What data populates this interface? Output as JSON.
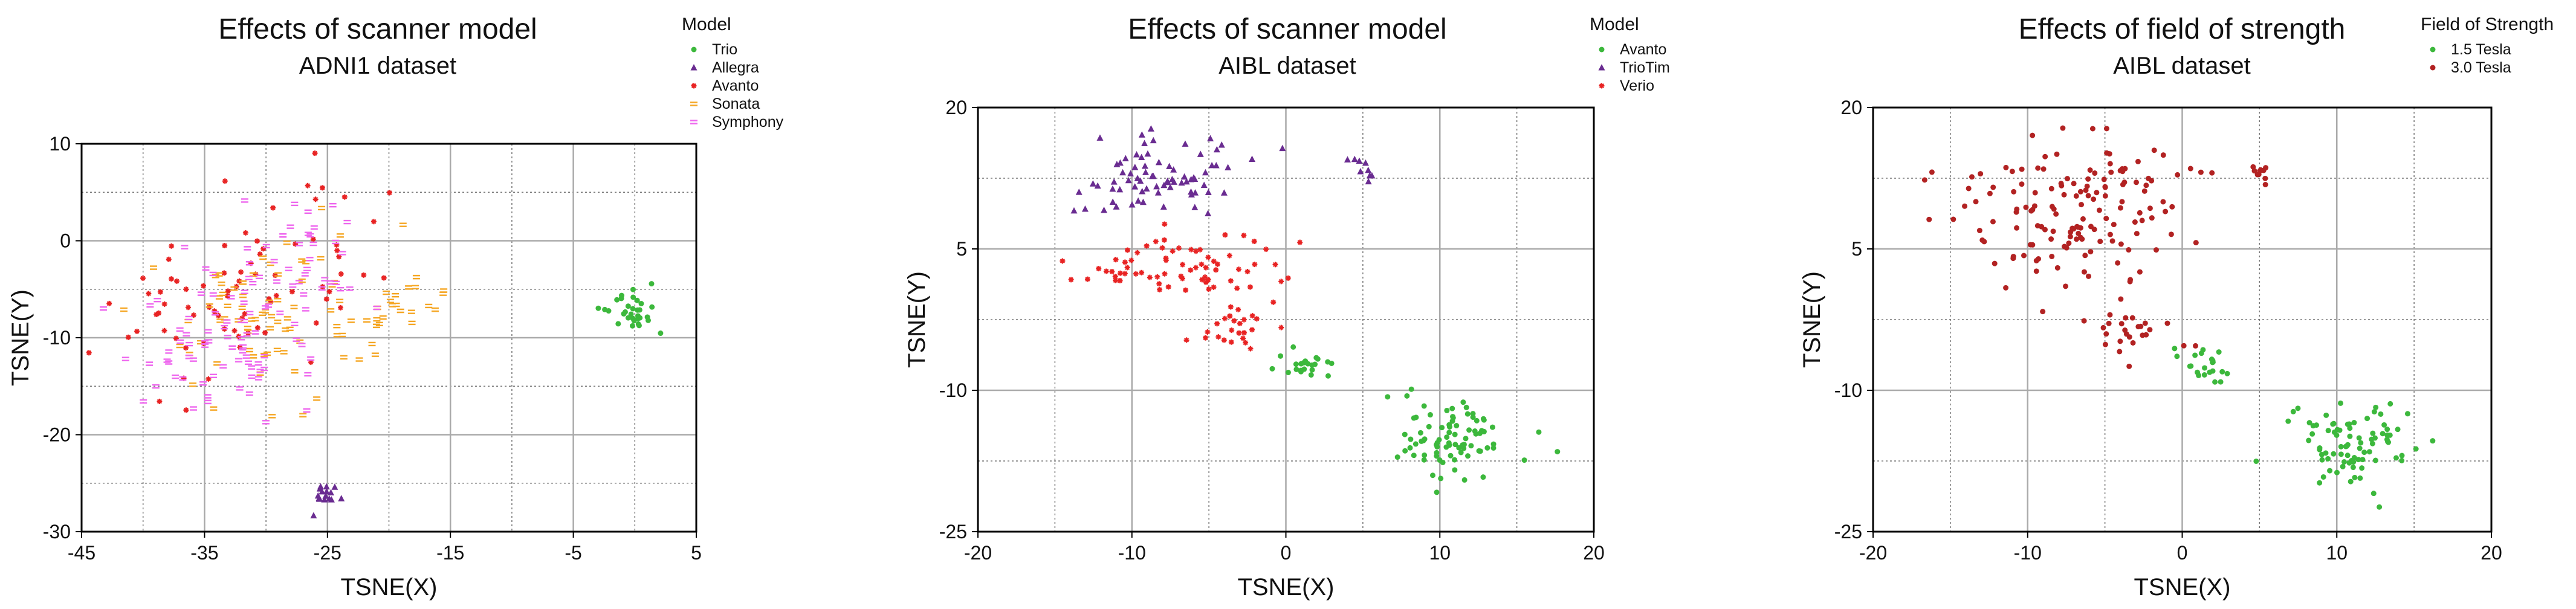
{
  "figure": {
    "description_count": 3
  },
  "chart_data": [
    {
      "type": "scatter",
      "title": "Effects of scanner model",
      "subtitle": "ADNI1 dataset",
      "xlabel": "TSNE(X)",
      "ylabel": "TSNE(Y)",
      "xlim": [
        -45,
        5
      ],
      "ylim": [
        -30,
        10
      ],
      "xticks": [
        -45,
        -35,
        -25,
        -15,
        -5,
        5
      ],
      "yticks": [
        -30,
        -20,
        -10,
        0,
        10
      ],
      "xgrid_major": [
        -35,
        -25,
        -15,
        -5
      ],
      "xgrid_minor": [
        -40,
        -30,
        -20,
        -10,
        0
      ],
      "ygrid_major": [
        -20,
        -10,
        0
      ],
      "ygrid_minor": [
        -25,
        -15,
        -5,
        5
      ],
      "legend_title": "Model",
      "legend_position": "top-right outside",
      "series": [
        {
          "name": "Trio",
          "color": "#3cb83c",
          "marker": "circle",
          "clusters": [
            {
              "cx": -0.5,
              "cy": -7.5,
              "sx": 1.5,
              "sy": 1.7,
              "n": 32
            }
          ]
        },
        {
          "name": "Allegra",
          "color": "#6a2c91",
          "marker": "triangle",
          "clusters": [
            {
              "cx": -25,
              "cy": -26.0,
              "sx": 1.0,
              "sy": 0.9,
              "n": 16
            }
          ]
        },
        {
          "name": "Avanto",
          "color": "#e82323",
          "marker": "star",
          "clusters": [
            {
              "cx": -35,
              "cy": -7,
              "sx": 5.5,
              "sy": 6,
              "n": 55
            },
            {
              "cx": -25,
              "cy": -2,
              "sx": 3.5,
              "sy": 5,
              "n": 25
            }
          ]
        },
        {
          "name": "Sonata",
          "color": "#f5a623",
          "marker": "dash",
          "clusters": [
            {
              "cx": -30,
              "cy": -8,
              "sx": 7,
              "sy": 6,
              "n": 75
            },
            {
              "cx": -20,
              "cy": -7,
              "sx": 2.5,
              "sy": 3,
              "n": 20
            }
          ]
        },
        {
          "name": "Symphony",
          "color": "#ee66ee",
          "marker": "dash",
          "clusters": [
            {
              "cx": -33,
              "cy": -9,
              "sx": 6,
              "sy": 6,
              "n": 80
            },
            {
              "cx": -26,
              "cy": -2,
              "sx": 3,
              "sy": 4,
              "n": 30
            }
          ]
        }
      ]
    },
    {
      "type": "scatter",
      "title": "Effects of scanner model",
      "subtitle": "AIBL dataset",
      "xlabel": "TSNE(X)",
      "ylabel": "TSNE(Y)",
      "xlim": [
        -20,
        20
      ],
      "ylim": [
        -25,
        20
      ],
      "xticks": [
        -20,
        -10,
        0,
        10,
        20
      ],
      "yticks": [
        -25,
        -10,
        5,
        20
      ],
      "xgrid_major": [
        -10,
        0,
        10
      ],
      "xgrid_minor": [
        -15,
        -5,
        5,
        15
      ],
      "ygrid_major": [
        -10,
        5
      ],
      "ygrid_minor": [
        -17.5,
        -2.5,
        12.5
      ],
      "legend_title": "Model",
      "legend_position": "top-right outside",
      "series": [
        {
          "name": "Avanto",
          "color": "#3cb83c",
          "marker": "circle",
          "clusters": [
            {
              "cx": 1.5,
              "cy": -7.5,
              "sx": 1.3,
              "sy": 1.2,
              "n": 22
            },
            {
              "cx": 11,
              "cy": -15.5,
              "sx": 2.6,
              "sy": 3.0,
              "n": 85
            }
          ]
        },
        {
          "name": "TrioTim",
          "color": "#6a2c91",
          "marker": "triangle",
          "clusters": [
            {
              "cx": -8,
              "cy": 13,
              "sx": 3.5,
              "sy": 2.5,
              "n": 75
            },
            {
              "cx": 5,
              "cy": 13.5,
              "sx": 0.6,
              "sy": 0.9,
              "n": 9
            }
          ]
        },
        {
          "name": "Verio",
          "color": "#e82323",
          "marker": "star",
          "clusters": [
            {
              "cx": -7,
              "cy": 3.5,
              "sx": 5,
              "sy": 2.2,
              "n": 70
            },
            {
              "cx": -3,
              "cy": -3.5,
              "sx": 1.5,
              "sy": 1.8,
              "n": 25
            }
          ]
        }
      ]
    },
    {
      "type": "scatter",
      "title": "Effects of field of strength",
      "subtitle": "AIBL dataset",
      "xlabel": "TSNE(X)",
      "ylabel": "TSNE(Y)",
      "xlim": [
        -20,
        20
      ],
      "ylim": [
        -25,
        20
      ],
      "xticks": [
        -20,
        -10,
        0,
        10,
        20
      ],
      "yticks": [
        -25,
        -10,
        5,
        20
      ],
      "xgrid_major": [
        -10,
        0,
        10
      ],
      "xgrid_minor": [
        -15,
        -5,
        5,
        15
      ],
      "ygrid_major": [
        -10,
        5
      ],
      "ygrid_minor": [
        -17.5,
        -2.5,
        12.5
      ],
      "legend_title": "Field of Strength",
      "legend_position": "top-right outside",
      "series": [
        {
          "name": "1.5 Tesla",
          "color": "#3cb83c",
          "marker": "circle",
          "clusters": [
            {
              "cx": 1.5,
              "cy": -7.5,
              "sx": 1.3,
              "sy": 1.2,
              "n": 22
            },
            {
              "cx": 11,
              "cy": -15.5,
              "sx": 2.6,
              "sy": 3.0,
              "n": 85
            }
          ]
        },
        {
          "name": "3.0 Tesla",
          "color": "#b22222",
          "marker": "circle",
          "clusters": [
            {
              "cx": -7,
              "cy": 9,
              "sx": 5,
              "sy": 5,
              "n": 150
            },
            {
              "cx": -3,
              "cy": -3.5,
              "sx": 1.5,
              "sy": 1.8,
              "n": 25
            },
            {
              "cx": 5,
              "cy": 13.5,
              "sx": 0.6,
              "sy": 0.9,
              "n": 9
            }
          ]
        }
      ]
    }
  ]
}
